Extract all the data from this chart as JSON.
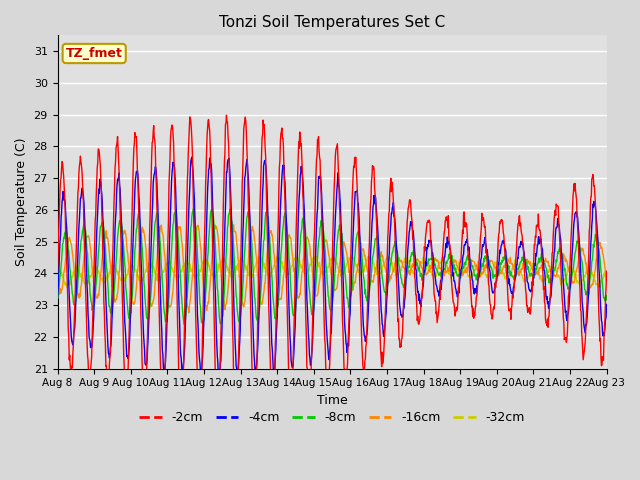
{
  "title": "Tonzi Soil Temperatures Set C",
  "xlabel": "Time",
  "ylabel": "Soil Temperature (C)",
  "ylim": [
    21.0,
    31.5
  ],
  "yticks": [
    21.0,
    22.0,
    23.0,
    24.0,
    25.0,
    26.0,
    27.0,
    28.0,
    29.0,
    30.0,
    31.0
  ],
  "x_labels": [
    "Aug 8",
    "Aug 9",
    "Aug 10",
    "Aug 11",
    "Aug 12",
    "Aug 13",
    "Aug 14",
    "Aug 15",
    "Aug 16",
    "Aug 17",
    "Aug 18",
    "Aug 19",
    "Aug 20",
    "Aug 21",
    "Aug 22",
    "Aug 23"
  ],
  "colors": {
    "-2cm": "#ff0000",
    "-4cm": "#0000ff",
    "-8cm": "#00cc00",
    "-16cm": "#ff8800",
    "-32cm": "#cccc00"
  },
  "annotation_text": "TZ_fmet",
  "annotation_color": "#cc0000",
  "annotation_bg": "#ffffcc",
  "fig_bg": "#d8d8d8",
  "plot_bg": "#e0e0e0",
  "days": 15,
  "n_points": 1080
}
